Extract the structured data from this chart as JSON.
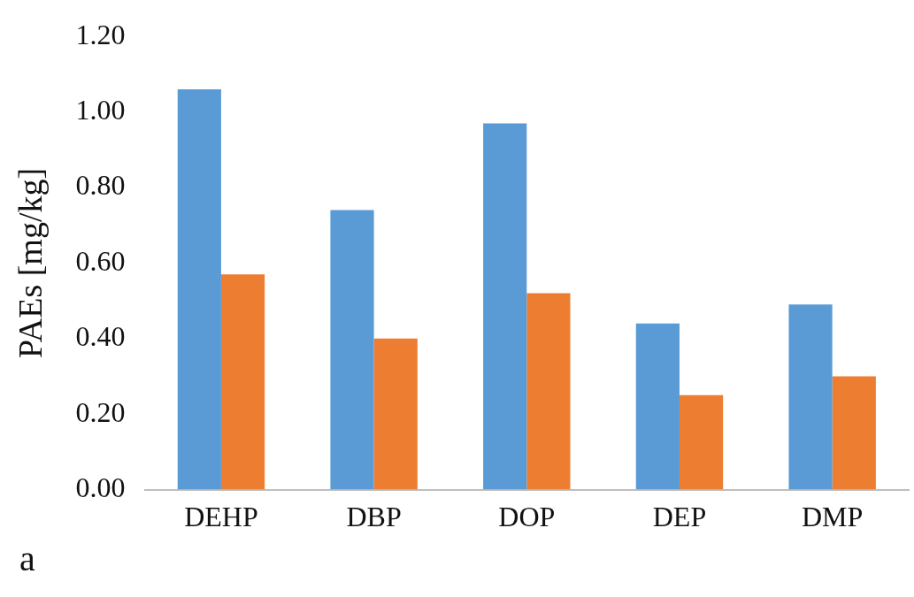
{
  "chart_data": {
    "type": "bar",
    "ylabel": "PAEs [mg/kg]",
    "categories": [
      "DEHP",
      "DBP",
      "DOP",
      "DEP",
      "DMP"
    ],
    "series": [
      {
        "color": "#5b9bd5",
        "values": [
          1.06,
          0.74,
          0.97,
          0.44,
          0.49
        ]
      },
      {
        "color": "#ed7d31",
        "values": [
          0.57,
          0.4,
          0.52,
          0.25,
          0.3
        ]
      }
    ],
    "ylim": [
      0,
      1.2
    ],
    "yticks": [
      {
        "value": 0,
        "label": "0.00"
      },
      {
        "value": 0.2,
        "label": "0.20"
      },
      {
        "value": 0.4,
        "label": "0.40"
      },
      {
        "value": 0.6,
        "label": "0.60"
      },
      {
        "value": 0.8,
        "label": "0.80"
      },
      {
        "value": 1,
        "label": "1.00"
      },
      {
        "value": 1.2,
        "label": "1.20"
      }
    ],
    "annotations": [
      "a"
    ],
    "grid": false,
    "legend": false
  }
}
